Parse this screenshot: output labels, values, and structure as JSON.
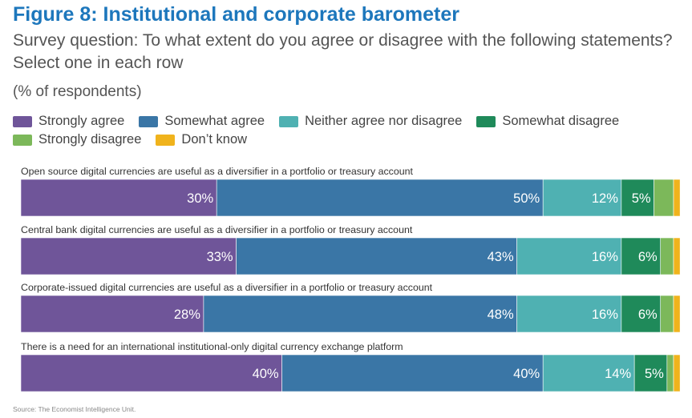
{
  "title": "Figure 8: Institutional and corporate barometer",
  "subtitle": "Survey question: To what extent do you agree or disagree with the following statements? Select one in each row",
  "units": "(% of respondents)",
  "source": "Source: The Economist Intelligence Unit.",
  "colors": {
    "Strongly agree": "#6f5599",
    "Somewhat agree": "#3a76a6",
    "Neither agree nor disagree": "#4fb1b2",
    "Somewhat disagree": "#1f8a5a",
    "Strongly disagree": "#7cb85a",
    "Don’t know": "#f0b31c"
  },
  "chart_data": {
    "type": "bar",
    "orientation": "horizontal",
    "stacked": true,
    "categories": [
      "Open source digital currencies are useful as a diversifier in a portfolio or treasury account",
      "Central bank digital currencies are useful as a diversifier in a portfolio or treasury account",
      "Corporate-issued digital currencies are useful as a diversifier in a portfolio or treasury account",
      "There is a need for an international institutional-only digital currency exchange platform"
    ],
    "series": [
      {
        "name": "Strongly agree",
        "values": [
          30,
          33,
          28,
          40
        ]
      },
      {
        "name": "Somewhat agree",
        "values": [
          50,
          43,
          48,
          40
        ]
      },
      {
        "name": "Neither agree nor disagree",
        "values": [
          12,
          16,
          16,
          14
        ]
      },
      {
        "name": "Somewhat disagree",
        "values": [
          5,
          6,
          6,
          5
        ]
      },
      {
        "name": "Strongly disagree",
        "values": [
          3,
          2,
          2,
          1
        ]
      },
      {
        "name": "Don’t know",
        "values": [
          1,
          1,
          1,
          1
        ]
      }
    ],
    "value_labels": [
      [
        "30%",
        "50%",
        "12%",
        "5%"
      ],
      [
        "33%",
        "43%",
        "16%",
        "6%"
      ],
      [
        "28%",
        "48%",
        "16%",
        "6%"
      ],
      [
        "40%",
        "40%",
        "14%",
        "5%"
      ]
    ],
    "xlim": [
      0,
      100
    ],
    "legend": "top"
  }
}
